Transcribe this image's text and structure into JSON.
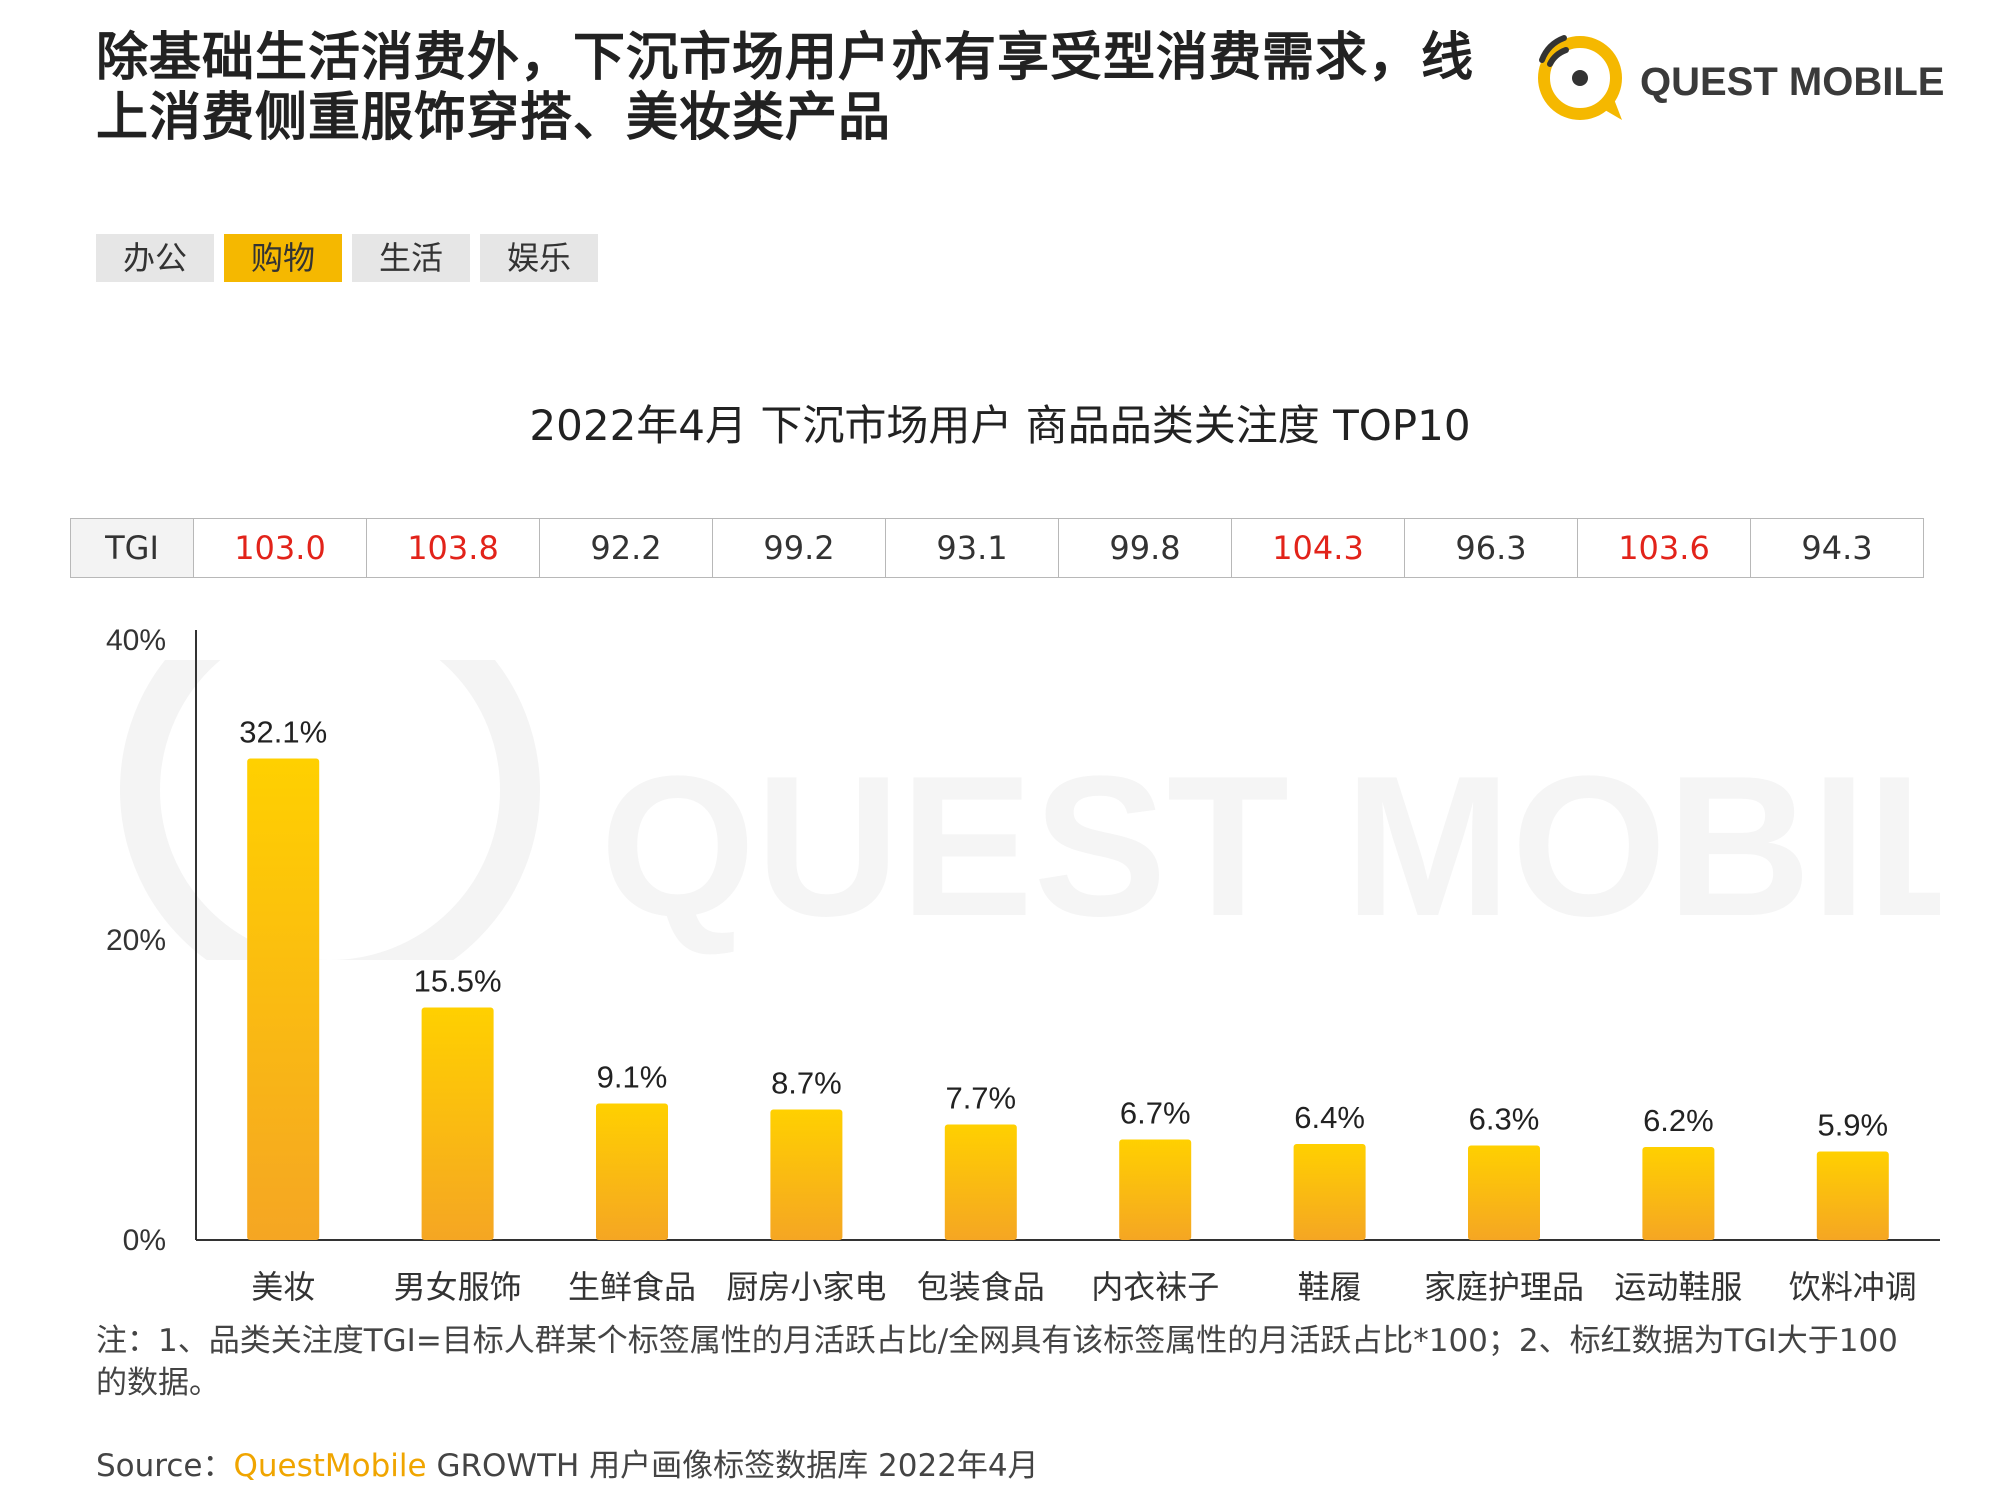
{
  "header": {
    "title": "除基础生活消费外，下沉市场用户亦有享受型消费需求，线上消费侧重服饰穿搭、美妆类产品",
    "logo_text": "QUEST MOBILE"
  },
  "tabs": [
    {
      "label": "办公",
      "active": false
    },
    {
      "label": "购物",
      "active": true
    },
    {
      "label": "生活",
      "active": false
    },
    {
      "label": "娱乐",
      "active": false
    }
  ],
  "tgi": {
    "label": "TGI",
    "values": [
      "103.0",
      "103.8",
      "92.2",
      "99.2",
      "93.1",
      "99.8",
      "104.3",
      "96.3",
      "103.6",
      "94.3"
    ],
    "highlight": [
      true,
      true,
      false,
      false,
      false,
      false,
      true,
      false,
      true,
      false
    ]
  },
  "chart_data": {
    "type": "bar",
    "title": "2022年4月 下沉市场用户 商品品类关注度 TOP10",
    "categories": [
      "美妆",
      "男女服饰",
      "生鲜食品",
      "厨房小家电",
      "包装食品",
      "内衣袜子",
      "鞋履",
      "家庭护理品",
      "运动鞋服",
      "饮料冲调"
    ],
    "values": [
      32.1,
      15.5,
      9.1,
      8.7,
      7.7,
      6.7,
      6.4,
      6.3,
      6.2,
      5.9
    ],
    "value_labels": [
      "32.1%",
      "15.5%",
      "9.1%",
      "8.7%",
      "7.7%",
      "6.7%",
      "6.4%",
      "6.3%",
      "6.2%",
      "5.9%"
    ],
    "ylim": [
      0,
      40
    ],
    "yticks": [
      0,
      20,
      40
    ],
    "ytick_labels": [
      "0%",
      "20%",
      "40%"
    ],
    "xlabel": "",
    "ylabel": "",
    "grid": false,
    "colors": {
      "bar_top": "#ffd000",
      "bar_bottom": "#f5a623",
      "axis": "#333333"
    }
  },
  "footer": {
    "note": "注：1、品类关注度TGI=目标人群某个标签属性的月活跃占比/全网具有该标签属性的月活跃占比*100；2、标红数据为TGI大于100的数据。",
    "source_prefix": "Source：",
    "source_brand": "QuestMobile",
    "source_rest": " GROWTH 用户画像标签数据库 2022年4月"
  },
  "colors": {
    "accent": "#f5b800",
    "tgi_highlight": "#e2231a"
  }
}
